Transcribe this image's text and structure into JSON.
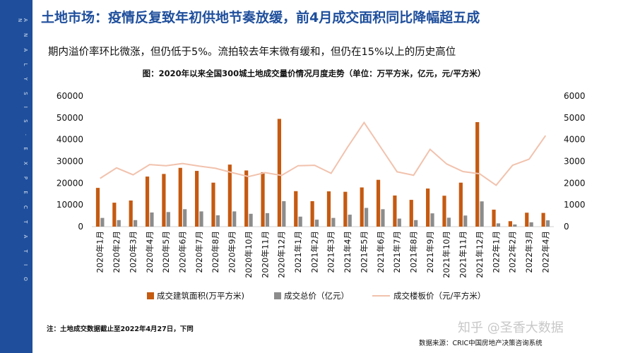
{
  "header": {
    "headline": "土地市场：疫情反复致年初供地节奏放缓，前4月成交面积同比降幅超五成",
    "subtitle": "期内溢价率环比微涨，但仍低于5%。流拍较去年末微有缓和，但仍在15%以上的历史高位"
  },
  "sidebar": {
    "text": "A N A L Y S I S · E X P E C T A T I O N"
  },
  "footer": {
    "note": "注：土地成交数据截止至2022年4月27日，下同",
    "source": "数据来源：CRIC中国房地产决策咨询系统",
    "watermark": "知乎 @圣香大数据"
  },
  "colors": {
    "area": "#c55a11",
    "total": "#8c8c8c",
    "price": "#f1c2ad",
    "brand": "#1f4f9c"
  },
  "chart_data": {
    "type": "bar",
    "title": "图：2020年以来全国300城土地成交量价情况月度走势（单位：万平方米，亿元，元/平方米）",
    "categories": [
      "2020年1月",
      "2020年2月",
      "2020年3月",
      "2020年4月",
      "2020年5月",
      "2020年6月",
      "2020年7月",
      "2020年8月",
      "2020年9月",
      "2020年10月",
      "2020年11月",
      "2020年12月",
      "2021年1月",
      "2021年2月",
      "2021年3月",
      "2021年4月",
      "2021年5月",
      "2021年6月",
      "2021年7月",
      "2021年8月",
      "2021年9月",
      "2021年10月",
      "2021年11月",
      "2021年12月",
      "2022年1月",
      "2022年2月",
      "2022年3月",
      "2022年4月"
    ],
    "y_left": {
      "ticks": [
        0,
        10000,
        20000,
        30000,
        40000,
        50000,
        60000
      ],
      "ylim": [
        0,
        60000
      ]
    },
    "y_right": {
      "ticks": [
        0,
        1000,
        2000,
        3000,
        4000,
        5000,
        6000
      ],
      "ylim": [
        0,
        6000
      ]
    },
    "series": [
      {
        "name": "成交建筑面积(万平方米)",
        "kind": "bar",
        "axis": "left",
        "values": [
          17800,
          11000,
          12000,
          23000,
          24200,
          27000,
          25600,
          20200,
          28500,
          25800,
          25000,
          49500,
          16300,
          11700,
          16200,
          16000,
          18000,
          21500,
          14300,
          12300,
          17500,
          14200,
          20200,
          48000,
          7800,
          2500,
          6400,
          6300
        ]
      },
      {
        "name": "成交总价（亿元）",
        "kind": "bar",
        "axis": "left",
        "values": [
          4000,
          3000,
          3000,
          6500,
          6700,
          8000,
          7000,
          5200,
          7000,
          5900,
          6200,
          11700,
          4600,
          3200,
          4000,
          5500,
          8600,
          8000,
          3700,
          3000,
          6100,
          4100,
          5100,
          11600,
          1500,
          1000,
          2000,
          2900
        ]
      },
      {
        "name": "成交楼板价（元/平方米）",
        "kind": "line",
        "axis": "right",
        "values": [
          2220,
          2700,
          2380,
          2850,
          2800,
          2900,
          2780,
          2680,
          2480,
          2300,
          2480,
          2350,
          2800,
          2820,
          2450,
          3650,
          4780,
          3650,
          2520,
          2360,
          3550,
          2880,
          2530,
          2430,
          1900,
          2820,
          3100,
          4180
        ]
      }
    ],
    "legend_position": "bottom"
  }
}
